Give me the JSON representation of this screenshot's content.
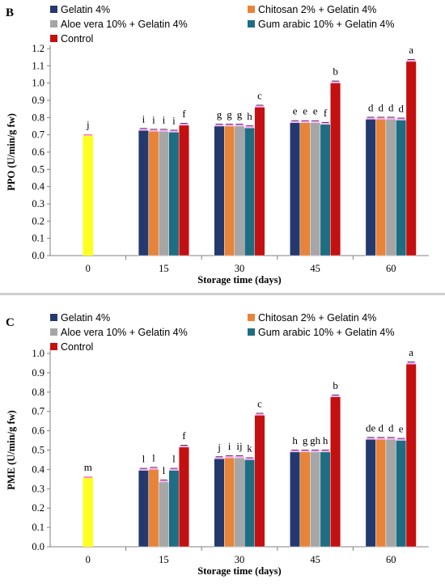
{
  "colors": {
    "gelatin": "#243a6e",
    "chitosan": "#e8833a",
    "aloe": "#a6a6a6",
    "gum": "#1e6d82",
    "control": "#c41010",
    "day0": "#ffff1f",
    "error_highlight": "#ff66ff"
  },
  "chart_data": [
    {
      "type": "bar",
      "panel_label": "B",
      "title": "",
      "xlabel": "Storage time (days)",
      "ylabel": "PPO (U/min/g fw)",
      "ylim": [
        0,
        1.2
      ],
      "yticks": [
        "0.0",
        "0.1",
        "0.2",
        "0.3",
        "0.4",
        "0.5",
        "0.6",
        "0.7",
        "0.8",
        "0.9",
        "1.0",
        "1.1",
        "1.2"
      ],
      "categories": [
        "0",
        "15",
        "30",
        "45",
        "60"
      ],
      "grid": false,
      "legend_placement": "top",
      "legend": [
        {
          "name": "Gelatin 4%",
          "color_key": "gelatin"
        },
        {
          "name": "Chitosan 2% + Gelatin 4%",
          "color_key": "chitosan"
        },
        {
          "name": "Aloe vera 10% + Gelatin 4%",
          "color_key": "aloe"
        },
        {
          "name": "Gum arabic 10% + Gelatin 4%",
          "color_key": "gum"
        },
        {
          "name": "Control",
          "color_key": "control"
        }
      ],
      "day0": {
        "value": 0.7,
        "label": "j"
      },
      "series": [
        {
          "name": "Gelatin 4%",
          "color_key": "gelatin",
          "values": [
            null,
            0.725,
            0.75,
            0.77,
            0.79
          ],
          "labels": [
            "",
            "i",
            "g",
            "e",
            "d"
          ]
        },
        {
          "name": "Chitosan 2% + Gelatin 4%",
          "color_key": "chitosan",
          "values": [
            null,
            0.72,
            0.75,
            0.77,
            0.79
          ],
          "labels": [
            "",
            "i",
            "g",
            "e",
            "d"
          ]
        },
        {
          "name": "Aloe vera 10% + Gelatin 4%",
          "color_key": "aloe",
          "values": [
            null,
            0.72,
            0.75,
            0.77,
            0.79
          ],
          "labels": [
            "",
            "i",
            "g",
            "e",
            "d"
          ]
        },
        {
          "name": "Gum arabic 10% + Gelatin 4%",
          "color_key": "gum",
          "values": [
            null,
            0.715,
            0.74,
            0.76,
            0.785
          ],
          "labels": [
            "",
            "i",
            "h",
            "f",
            "d"
          ]
        },
        {
          "name": "Control",
          "color_key": "control",
          "values": [
            null,
            0.755,
            0.86,
            1.0,
            1.125
          ],
          "labels": [
            "",
            "f",
            "c",
            "b",
            "a"
          ]
        }
      ]
    },
    {
      "type": "bar",
      "panel_label": "C",
      "title": "",
      "xlabel": "Storage time (days)",
      "ylabel": "PME (U/min/g fw)",
      "ylim": [
        0,
        1.0
      ],
      "yticks": [
        "0.0",
        "0.1",
        "0.2",
        "0.3",
        "0.4",
        "0.5",
        "0.6",
        "0.7",
        "0.8",
        "0.9",
        "1.0"
      ],
      "categories": [
        "0",
        "15",
        "30",
        "45",
        "60"
      ],
      "grid": false,
      "legend_placement": "top",
      "legend": [
        {
          "name": "Gelatin 4%",
          "color_key": "gelatin"
        },
        {
          "name": "Chitosan 2% + Gelatin 4%",
          "color_key": "chitosan"
        },
        {
          "name": "Aloe vera 10% + Gelatin 4%",
          "color_key": "aloe"
        },
        {
          "name": "Gum arabic 10% + Gelatin 4%",
          "color_key": "gum"
        },
        {
          "name": "Control",
          "color_key": "control"
        }
      ],
      "day0": {
        "value": 0.36,
        "label": "m"
      },
      "series": [
        {
          "name": "Gelatin 4%",
          "color_key": "gelatin",
          "values": [
            null,
            0.395,
            0.455,
            0.49,
            0.555
          ],
          "labels": [
            "",
            "l",
            "j",
            "h",
            "de"
          ]
        },
        {
          "name": "Chitosan 2% + Gelatin 4%",
          "color_key": "chitosan",
          "values": [
            null,
            0.4,
            0.46,
            0.49,
            0.555
          ],
          "labels": [
            "",
            "l",
            "i",
            "g",
            "d"
          ]
        },
        {
          "name": "Aloe vera 10% + Gelatin 4%",
          "color_key": "aloe",
          "values": [
            null,
            0.335,
            0.46,
            0.49,
            0.555
          ],
          "labels": [
            "",
            "l",
            "ij",
            "gh",
            "d"
          ]
        },
        {
          "name": "Gum arabic 10% + Gelatin 4%",
          "color_key": "gum",
          "values": [
            null,
            0.395,
            0.45,
            0.49,
            0.55
          ],
          "labels": [
            "",
            "l",
            "k",
            "h",
            "e"
          ]
        },
        {
          "name": "Control",
          "color_key": "control",
          "values": [
            null,
            0.515,
            0.68,
            0.775,
            0.945
          ],
          "labels": [
            "",
            "f",
            "c",
            "b",
            "a"
          ]
        }
      ]
    }
  ]
}
